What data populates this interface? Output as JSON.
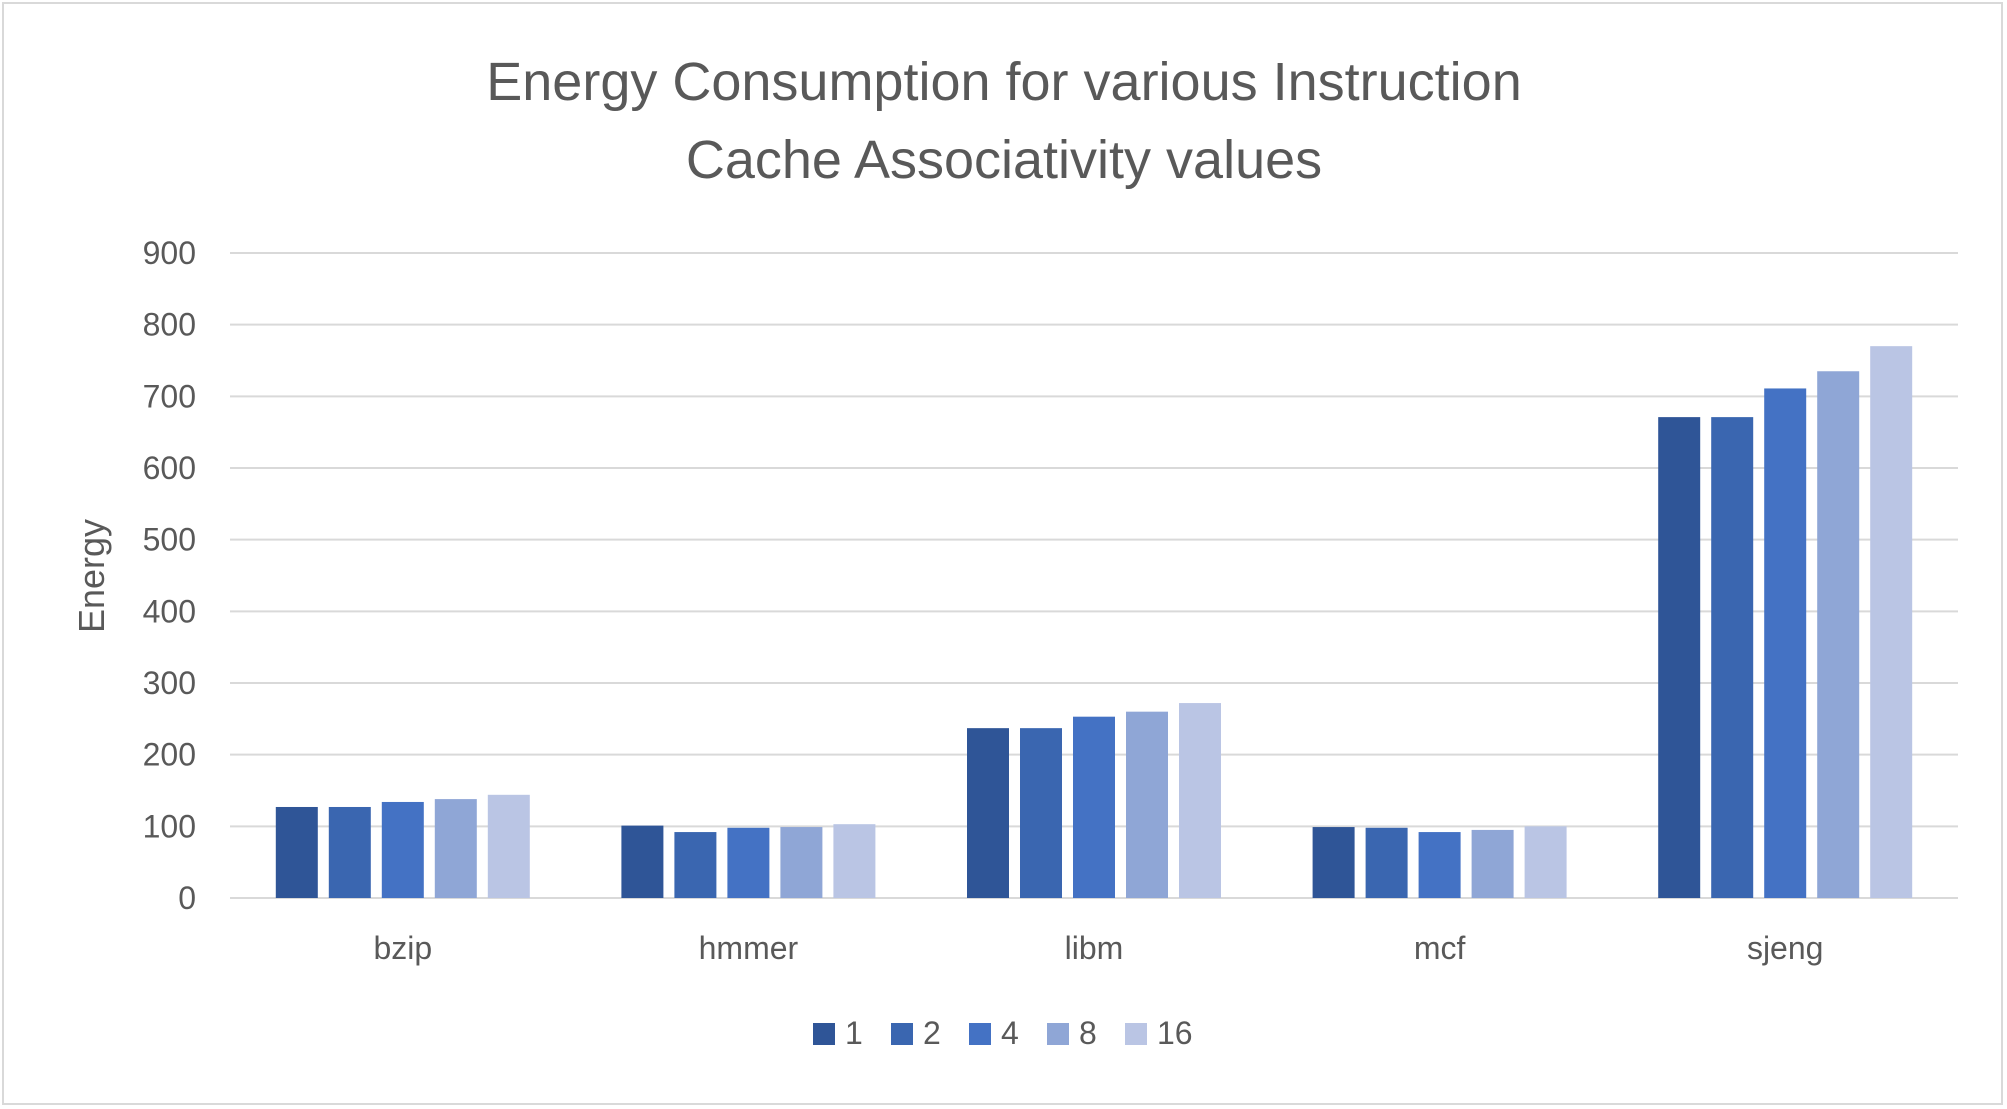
{
  "chart_data": {
    "type": "bar",
    "title": [
      "Energy Consumption for various Instruction",
      "Cache Associativity values"
    ],
    "xlabel": "",
    "ylabel": "Energy",
    "ylim": [
      0,
      900
    ],
    "yticks": [
      0,
      100,
      200,
      300,
      400,
      500,
      600,
      700,
      800,
      900
    ],
    "grid": true,
    "legend_position": "bottom",
    "categories": [
      "bzip",
      "hmmer",
      "libm",
      "mcf",
      "sjeng"
    ],
    "series": [
      {
        "name": "1",
        "color": "#2f5597",
        "values": [
          127,
          101,
          237,
          99,
          671
        ]
      },
      {
        "name": "2",
        "color": "#3a66b0",
        "values": [
          127,
          92,
          237,
          98,
          671
        ]
      },
      {
        "name": "4",
        "color": "#4472c4",
        "values": [
          134,
          98,
          253,
          92,
          711
        ]
      },
      {
        "name": "8",
        "color": "#8fa6d6",
        "values": [
          138,
          99,
          260,
          95,
          735
        ]
      },
      {
        "name": "16",
        "color": "#bac5e4",
        "values": [
          144,
          103,
          272,
          100,
          770
        ]
      }
    ]
  }
}
